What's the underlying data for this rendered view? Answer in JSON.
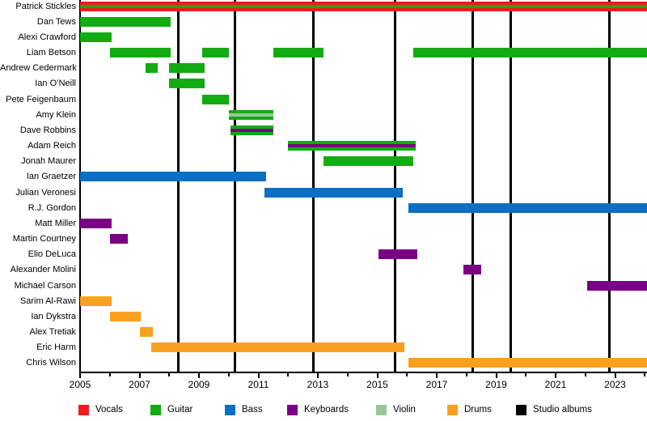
{
  "chart_data": {
    "type": "gantt-timeline",
    "x_axis": {
      "start": 2005,
      "end": 2024.07,
      "major_tick_labels": [
        "2005",
        "2007",
        "2009",
        "2011",
        "2013",
        "2015",
        "2017",
        "2019",
        "2021",
        "2023"
      ],
      "minor_tick_start": 2005,
      "minor_tick_end": 2024,
      "grid": "off"
    },
    "legend": [
      {
        "label": "Vocals",
        "color": "#ee1c1c"
      },
      {
        "label": "Guitar",
        "color": "#12ab12"
      },
      {
        "label": "Bass",
        "color": "#0b6fc4"
      },
      {
        "label": "Keyboards",
        "color": "#7a0086"
      },
      {
        "label": "Violin",
        "color": "#96c896"
      },
      {
        "label": "Drums",
        "color": "#f9a11f"
      },
      {
        "label": "Studio albums",
        "color": "#000000"
      }
    ],
    "album_release_years": [
      2008.3,
      2010.2,
      2012.85,
      2015.6,
      2018.2,
      2019.5,
      2022.8
    ],
    "members": [
      {
        "name": "Patrick Stickles",
        "bars": [
          {
            "start": 2005,
            "end": 2024.07,
            "bands": [
              "Vocals",
              "Guitar",
              "Vocals"
            ]
          }
        ]
      },
      {
        "name": "Dan Tews",
        "bars": [
          {
            "start": 2005,
            "end": 2008.05,
            "bands": [
              "Guitar"
            ]
          }
        ]
      },
      {
        "name": "Alexi Crawford",
        "bars": [
          {
            "start": 2005,
            "end": 2006.05,
            "bands": [
              "Guitar"
            ]
          }
        ]
      },
      {
        "name": "Liam Betson",
        "bars": [
          {
            "start": 2006.0,
            "end": 2008.05,
            "bands": [
              "Guitar"
            ]
          },
          {
            "start": 2009.1,
            "end": 2010.0,
            "bands": [
              "Guitar"
            ]
          },
          {
            "start": 2011.5,
            "end": 2013.2,
            "bands": [
              "Guitar"
            ]
          },
          {
            "start": 2016.2,
            "end": 2024.07,
            "bands": [
              "Guitar"
            ]
          }
        ]
      },
      {
        "name": "Andrew Cedermark",
        "bars": [
          {
            "start": 2007.2,
            "end": 2007.6,
            "bands": [
              "Guitar"
            ]
          },
          {
            "start": 2008.0,
            "end": 2009.2,
            "bands": [
              "Guitar"
            ]
          }
        ]
      },
      {
        "name": "Ian O’Neill",
        "bars": [
          {
            "start": 2008.0,
            "end": 2009.2,
            "bands": [
              "Guitar"
            ]
          }
        ]
      },
      {
        "name": "Pete Feigenbaum",
        "bars": [
          {
            "start": 2009.1,
            "end": 2010.0,
            "bands": [
              "Guitar"
            ]
          }
        ]
      },
      {
        "name": "Amy Klein",
        "bars": [
          {
            "start": 2010.0,
            "end": 2011.5,
            "bands": [
              "Guitar",
              "Violin",
              "Guitar"
            ]
          }
        ]
      },
      {
        "name": "Dave Robbins",
        "bars": [
          {
            "start": 2010.05,
            "end": 2011.5,
            "bands": [
              "Guitar",
              "Keyboards",
              "Guitar"
            ]
          }
        ]
      },
      {
        "name": "Adam Reich",
        "bars": [
          {
            "start": 2012.0,
            "end": 2016.3,
            "bands": [
              "Guitar",
              "Keyboards",
              "Guitar"
            ]
          }
        ]
      },
      {
        "name": "Jonah Maurer",
        "bars": [
          {
            "start": 2013.2,
            "end": 2016.2,
            "bands": [
              "Guitar"
            ]
          }
        ]
      },
      {
        "name": "Ian Graetzer",
        "bars": [
          {
            "start": 2005,
            "end": 2011.25,
            "bands": [
              "Bass"
            ]
          }
        ]
      },
      {
        "name": "Julian Veronesi",
        "bars": [
          {
            "start": 2011.2,
            "end": 2015.85,
            "bands": [
              "Bass"
            ]
          }
        ]
      },
      {
        "name": "R.J. Gordon",
        "bars": [
          {
            "start": 2016.05,
            "end": 2024.07,
            "bands": [
              "Bass"
            ]
          }
        ]
      },
      {
        "name": "Matt Miller",
        "bars": [
          {
            "start": 2005,
            "end": 2006.05,
            "bands": [
              "Keyboards"
            ]
          }
        ]
      },
      {
        "name": "Martin Courtney",
        "bars": [
          {
            "start": 2006.0,
            "end": 2006.6,
            "bands": [
              "Keyboards"
            ]
          }
        ]
      },
      {
        "name": "Elio DeLuca",
        "bars": [
          {
            "start": 2015.05,
            "end": 2016.35,
            "bands": [
              "Keyboards"
            ]
          }
        ]
      },
      {
        "name": "Alexander Molini",
        "bars": [
          {
            "start": 2017.9,
            "end": 2018.5,
            "bands": [
              "Keyboards"
            ]
          }
        ]
      },
      {
        "name": "Michael Carson",
        "bars": [
          {
            "start": 2022.05,
            "end": 2024.07,
            "bands": [
              "Keyboards"
            ]
          }
        ]
      },
      {
        "name": "Sarim Al-Rawi",
        "bars": [
          {
            "start": 2005,
            "end": 2006.05,
            "bands": [
              "Drums"
            ]
          }
        ]
      },
      {
        "name": "Ian Dykstra",
        "bars": [
          {
            "start": 2006.0,
            "end": 2007.05,
            "bands": [
              "Drums"
            ]
          }
        ]
      },
      {
        "name": "Alex Tretiak",
        "bars": [
          {
            "start": 2007.0,
            "end": 2007.45,
            "bands": [
              "Drums"
            ]
          }
        ]
      },
      {
        "name": "Eric Harm",
        "bars": [
          {
            "start": 2007.4,
            "end": 2015.9,
            "bands": [
              "Drums"
            ]
          }
        ]
      },
      {
        "name": "Chris Wilson",
        "bars": [
          {
            "start": 2016.05,
            "end": 2024.07,
            "bands": [
              "Drums"
            ]
          }
        ]
      }
    ]
  }
}
